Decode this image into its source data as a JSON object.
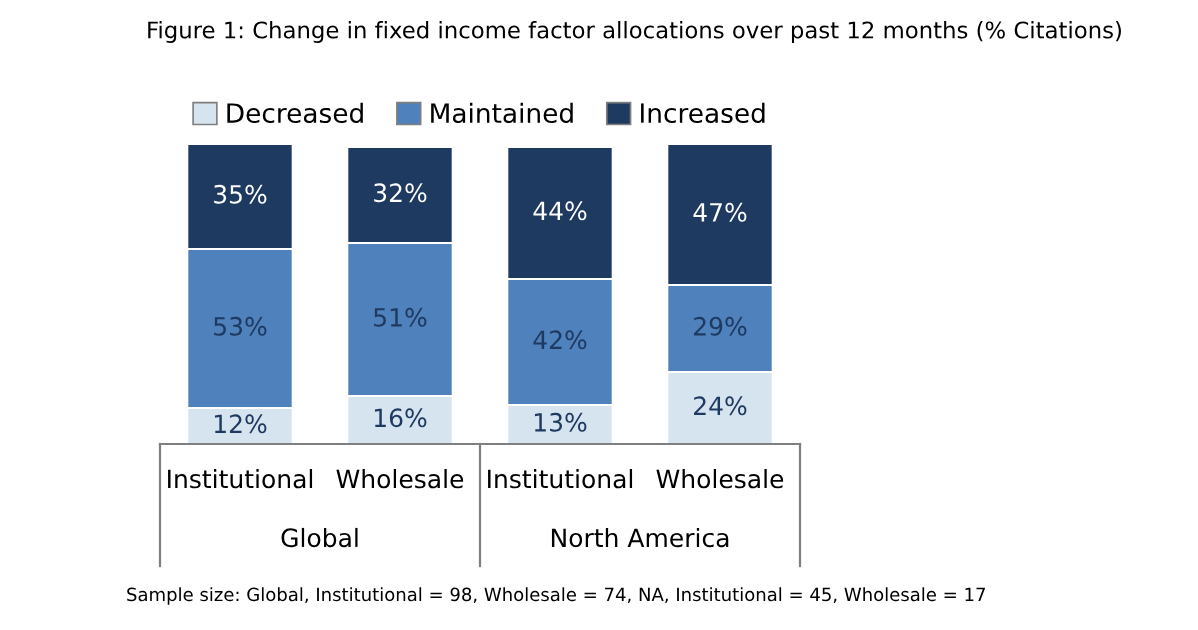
{
  "chart_data": {
    "type": "bar",
    "stacked": true,
    "title": "Figure 1: Change in fixed income factor allocations over past 12 months (% Citations)",
    "categories": [
      "Institutional",
      "Wholesale",
      "Institutional",
      "Wholesale"
    ],
    "series": [
      {
        "name": "Decreased",
        "color": "#d6e4f0",
        "values": [
          12,
          16,
          13,
          24
        ],
        "value_labels": [
          "12%",
          "16%",
          "13%",
          "24%"
        ]
      },
      {
        "name": "Maintained",
        "color": "#4f81bd",
        "values": [
          53,
          51,
          42,
          29
        ],
        "value_labels": [
          "53%",
          "51%",
          "42%",
          "29%"
        ]
      },
      {
        "name": "Increased",
        "color": "#1f3a60",
        "values": [
          35,
          32,
          44,
          47
        ],
        "value_labels": [
          "35%",
          "32%",
          "44%",
          "47%"
        ]
      }
    ],
    "legend": "top",
    "grid": false,
    "tick_labels": "x",
    "annotations": [
      "Global",
      "North America",
      "Sample size: Global, Institutional = 98, Wholesale = 74, NA, Institutional = 45, Wholesale = 17"
    ]
  }
}
